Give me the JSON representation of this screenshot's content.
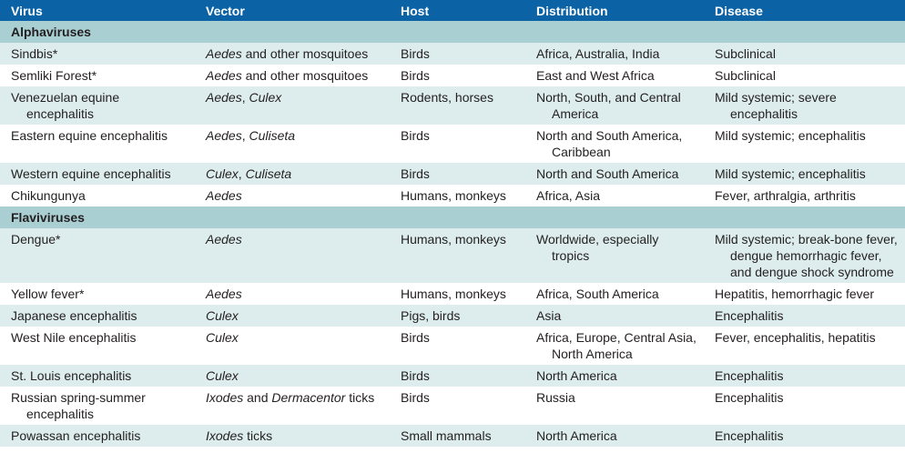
{
  "headers": [
    "Virus",
    "Vector",
    "Host",
    "Distribution",
    "Disease"
  ],
  "sections": [
    {
      "title": "Alphaviruses",
      "rows": [
        {
          "virus": "Sindbis*",
          "vector": [
            {
              "t": "Aedes",
              "i": true
            },
            {
              "t": " and other mosquitoes",
              "i": false
            }
          ],
          "host": "Birds",
          "distribution": "Africa, Australia, India",
          "disease": "Subclinical"
        },
        {
          "virus": "Semliki Forest*",
          "vector": [
            {
              "t": "Aedes",
              "i": true
            },
            {
              "t": " and other mosquitoes",
              "i": false
            }
          ],
          "host": "Birds",
          "distribution": "East and West Africa",
          "disease": "Subclinical"
        },
        {
          "virus": "Venezuelan equine encephalitis",
          "vector": [
            {
              "t": "Aedes",
              "i": true
            },
            {
              "t": ", ",
              "i": false
            },
            {
              "t": "Culex",
              "i": true
            }
          ],
          "host": "Rodents, horses",
          "distribution": "North, South, and Central America",
          "disease": "Mild systemic; severe encephalitis"
        },
        {
          "virus": "Eastern equine encephalitis",
          "vector": [
            {
              "t": "Aedes",
              "i": true
            },
            {
              "t": ", ",
              "i": false
            },
            {
              "t": "Culiseta",
              "i": true
            }
          ],
          "host": "Birds",
          "distribution": "North and South America, Caribbean",
          "disease": "Mild systemic; encephalitis"
        },
        {
          "virus": "Western equine encephalitis",
          "vector": [
            {
              "t": "Culex",
              "i": true
            },
            {
              "t": ", ",
              "i": false
            },
            {
              "t": "Culiseta",
              "i": true
            }
          ],
          "host": "Birds",
          "distribution": "North and South America",
          "disease": "Mild systemic; encephalitis"
        },
        {
          "virus": "Chikungunya",
          "vector": [
            {
              "t": "Aedes",
              "i": true
            }
          ],
          "host": "Humans, monkeys",
          "distribution": "Africa, Asia",
          "disease": "Fever, arthralgia, arthritis"
        }
      ]
    },
    {
      "title": "Flaviviruses",
      "rows": [
        {
          "virus": "Dengue*",
          "vector": [
            {
              "t": "Aedes",
              "i": true
            }
          ],
          "host": "Humans, monkeys",
          "distribution": "Worldwide, especially tropics",
          "disease": "Mild systemic; break-bone fever, dengue hemorrhagic fever, and dengue shock syndrome"
        },
        {
          "virus": "Yellow fever*",
          "vector": [
            {
              "t": "Aedes",
              "i": true
            }
          ],
          "host": "Humans, monkeys",
          "distribution": "Africa, South America",
          "disease": "Hepatitis, hemorrhagic fever"
        },
        {
          "virus": "Japanese encephalitis",
          "vector": [
            {
              "t": "Culex",
              "i": true
            }
          ],
          "host": "Pigs, birds",
          "distribution": "Asia",
          "disease": "Encephalitis"
        },
        {
          "virus": "West Nile encephalitis",
          "vector": [
            {
              "t": "Culex",
              "i": true
            }
          ],
          "host": "Birds",
          "distribution": "Africa, Europe, Central Asia, North America",
          "disease": "Fever, encephalitis, hepatitis"
        },
        {
          "virus": "St. Louis encephalitis",
          "vector": [
            {
              "t": "Culex",
              "i": true
            }
          ],
          "host": "Birds",
          "distribution": "North America",
          "disease": "Encephalitis"
        },
        {
          "virus": "Russian spring-summer encephalitis",
          "vector": [
            {
              "t": "Ixodes",
              "i": true
            },
            {
              "t": " and ",
              "i": false
            },
            {
              "t": "Dermacentor",
              "i": true
            },
            {
              "t": " ticks",
              "i": false
            }
          ],
          "host": "Birds",
          "distribution": "Russia",
          "disease": "Encephalitis"
        },
        {
          "virus": "Powassan encephalitis",
          "vector": [
            {
              "t": "Ixodes",
              "i": true
            },
            {
              "t": " ticks",
              "i": false
            }
          ],
          "host": "Small mammals",
          "distribution": "North America",
          "disease": "Encephalitis"
        }
      ]
    }
  ]
}
